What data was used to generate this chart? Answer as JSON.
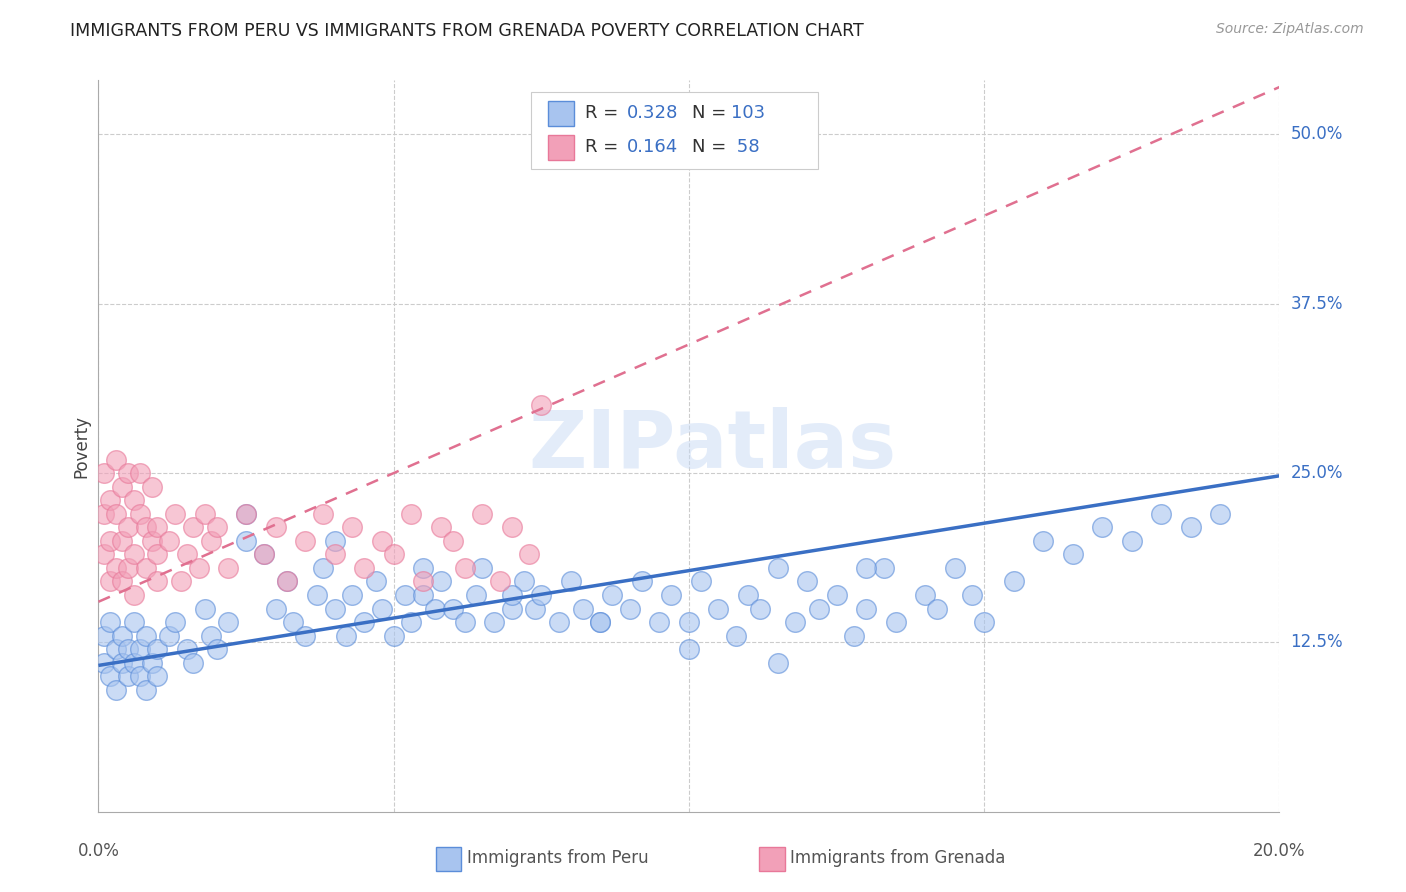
{
  "title": "IMMIGRANTS FROM PERU VS IMMIGRANTS FROM GRENADA POVERTY CORRELATION CHART",
  "source": "Source: ZipAtlas.com",
  "ylabel": "Poverty",
  "ytick_vals": [
    0.125,
    0.25,
    0.375,
    0.5
  ],
  "ytick_labels": [
    "12.5%",
    "25.0%",
    "37.5%",
    "50.0%"
  ],
  "xlim": [
    0.0,
    0.2
  ],
  "ylim": [
    0.0,
    0.54
  ],
  "legend_peru_r": "0.328",
  "legend_peru_n": "103",
  "legend_grenada_r": "0.164",
  "legend_grenada_n": "58",
  "peru_color": "#a8c4ef",
  "peru_edge_color": "#5b8dd9",
  "grenada_color": "#f2a0b8",
  "grenada_edge_color": "#e87899",
  "peru_line_color": "#3a6fc4",
  "grenada_line_color": "#e07090",
  "watermark_color": "#c8daf5",
  "peru_line_x": [
    0.0,
    0.2
  ],
  "peru_line_y": [
    0.108,
    0.248
  ],
  "grenada_line_x": [
    0.0,
    0.2
  ],
  "grenada_line_y": [
    0.155,
    0.535
  ],
  "background_color": "#ffffff",
  "grid_color": "#cccccc",
  "peru_scatter_x": [
    0.001,
    0.001,
    0.002,
    0.002,
    0.003,
    0.003,
    0.004,
    0.004,
    0.005,
    0.005,
    0.006,
    0.006,
    0.007,
    0.007,
    0.008,
    0.008,
    0.009,
    0.01,
    0.01,
    0.012,
    0.013,
    0.015,
    0.016,
    0.018,
    0.019,
    0.02,
    0.022,
    0.025,
    0.025,
    0.028,
    0.03,
    0.032,
    0.033,
    0.035,
    0.037,
    0.038,
    0.04,
    0.042,
    0.043,
    0.045,
    0.047,
    0.048,
    0.05,
    0.052,
    0.053,
    0.055,
    0.057,
    0.058,
    0.06,
    0.062,
    0.064,
    0.065,
    0.067,
    0.07,
    0.072,
    0.074,
    0.075,
    0.078,
    0.08,
    0.082,
    0.085,
    0.087,
    0.09,
    0.092,
    0.095,
    0.097,
    0.1,
    0.102,
    0.105,
    0.108,
    0.11,
    0.112,
    0.115,
    0.118,
    0.12,
    0.122,
    0.125,
    0.128,
    0.13,
    0.133,
    0.135,
    0.14,
    0.142,
    0.145,
    0.148,
    0.15,
    0.155,
    0.16,
    0.165,
    0.17,
    0.175,
    0.18,
    0.185,
    0.19,
    0.04,
    0.055,
    0.07,
    0.085,
    0.1,
    0.115,
    0.13
  ],
  "peru_scatter_y": [
    0.11,
    0.13,
    0.1,
    0.14,
    0.12,
    0.09,
    0.11,
    0.13,
    0.1,
    0.12,
    0.14,
    0.11,
    0.1,
    0.12,
    0.13,
    0.09,
    0.11,
    0.1,
    0.12,
    0.13,
    0.14,
    0.12,
    0.11,
    0.15,
    0.13,
    0.12,
    0.14,
    0.22,
    0.2,
    0.19,
    0.15,
    0.17,
    0.14,
    0.13,
    0.16,
    0.18,
    0.15,
    0.13,
    0.16,
    0.14,
    0.17,
    0.15,
    0.13,
    0.16,
    0.14,
    0.16,
    0.15,
    0.17,
    0.15,
    0.14,
    0.16,
    0.18,
    0.14,
    0.15,
    0.17,
    0.15,
    0.16,
    0.14,
    0.17,
    0.15,
    0.14,
    0.16,
    0.15,
    0.17,
    0.14,
    0.16,
    0.14,
    0.17,
    0.15,
    0.13,
    0.16,
    0.15,
    0.18,
    0.14,
    0.17,
    0.15,
    0.16,
    0.13,
    0.15,
    0.18,
    0.14,
    0.16,
    0.15,
    0.18,
    0.16,
    0.14,
    0.17,
    0.2,
    0.19,
    0.21,
    0.2,
    0.22,
    0.21,
    0.22,
    0.2,
    0.18,
    0.16,
    0.14,
    0.12,
    0.11,
    0.18
  ],
  "grenada_scatter_x": [
    0.001,
    0.001,
    0.001,
    0.002,
    0.002,
    0.002,
    0.003,
    0.003,
    0.003,
    0.004,
    0.004,
    0.004,
    0.005,
    0.005,
    0.005,
    0.006,
    0.006,
    0.006,
    0.007,
    0.007,
    0.008,
    0.008,
    0.009,
    0.009,
    0.01,
    0.01,
    0.01,
    0.012,
    0.013,
    0.014,
    0.015,
    0.016,
    0.017,
    0.018,
    0.019,
    0.02,
    0.022,
    0.025,
    0.028,
    0.03,
    0.032,
    0.035,
    0.038,
    0.04,
    0.043,
    0.045,
    0.048,
    0.05,
    0.053,
    0.055,
    0.058,
    0.06,
    0.062,
    0.065,
    0.068,
    0.07,
    0.073,
    0.075
  ],
  "grenada_scatter_y": [
    0.19,
    0.22,
    0.25,
    0.17,
    0.2,
    0.23,
    0.18,
    0.22,
    0.26,
    0.2,
    0.17,
    0.24,
    0.21,
    0.18,
    0.25,
    0.19,
    0.23,
    0.16,
    0.22,
    0.25,
    0.18,
    0.21,
    0.2,
    0.24,
    0.17,
    0.21,
    0.19,
    0.2,
    0.22,
    0.17,
    0.19,
    0.21,
    0.18,
    0.22,
    0.2,
    0.21,
    0.18,
    0.22,
    0.19,
    0.21,
    0.17,
    0.2,
    0.22,
    0.19,
    0.21,
    0.18,
    0.2,
    0.19,
    0.22,
    0.17,
    0.21,
    0.2,
    0.18,
    0.22,
    0.17,
    0.21,
    0.19,
    0.3
  ]
}
